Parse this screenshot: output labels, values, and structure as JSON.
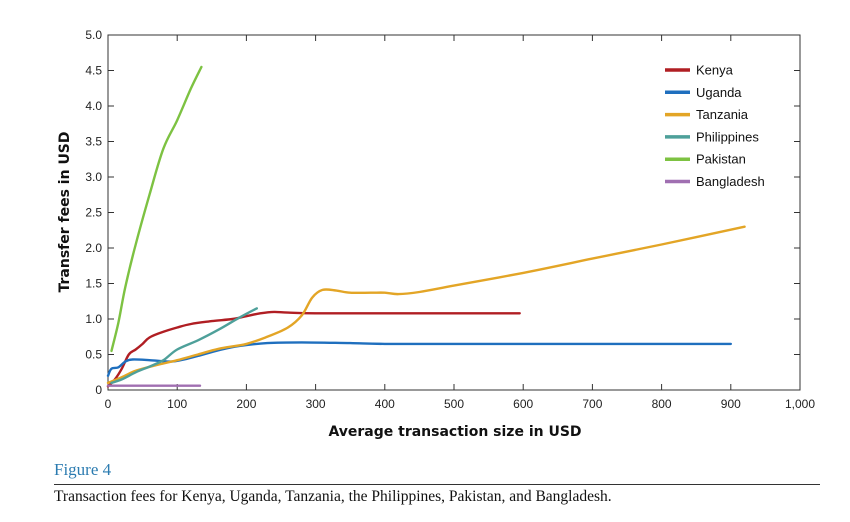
{
  "figure": {
    "label": "Figure 4",
    "caption": "Transaction fees for Kenya, Uganda, Tanzania, the Philippines, Pakistan, and Bangladesh."
  },
  "chart_data": {
    "type": "line",
    "title": "",
    "xlabel": "Average transaction size in USD",
    "ylabel": "Transfer fees in USD",
    "xlim": [
      0,
      1000
    ],
    "ylim": [
      0,
      5.0
    ],
    "x_ticks": [
      0,
      100,
      200,
      300,
      400,
      500,
      600,
      700,
      800,
      900,
      1000
    ],
    "x_tick_labels": [
      "0",
      "100",
      "200",
      "300",
      "400",
      "500",
      "600",
      "700",
      "800",
      "900",
      "1,000"
    ],
    "y_ticks": [
      0,
      0.5,
      1.0,
      1.5,
      2.0,
      2.5,
      3.0,
      3.5,
      4.0,
      4.5,
      5.0
    ],
    "y_tick_labels": [
      "0",
      "0.5",
      "1.0",
      "1.5",
      "2.0",
      "2.5",
      "3.0",
      "3.5",
      "4.0",
      "4.5",
      "5.0"
    ],
    "grid": false,
    "legend_position": "top-right",
    "series": [
      {
        "name": "Kenya",
        "color": "#b01e23",
        "points": [
          [
            0,
            0.05
          ],
          [
            10,
            0.15
          ],
          [
            20,
            0.3
          ],
          [
            30,
            0.5
          ],
          [
            40,
            0.57
          ],
          [
            50,
            0.65
          ],
          [
            60,
            0.74
          ],
          [
            80,
            0.82
          ],
          [
            100,
            0.88
          ],
          [
            120,
            0.93
          ],
          [
            150,
            0.97
          ],
          [
            180,
            1.0
          ],
          [
            200,
            1.04
          ],
          [
            220,
            1.08
          ],
          [
            240,
            1.1
          ],
          [
            260,
            1.09
          ],
          [
            300,
            1.08
          ],
          [
            400,
            1.08
          ],
          [
            500,
            1.08
          ],
          [
            595,
            1.08
          ]
        ]
      },
      {
        "name": "Uganda",
        "color": "#1f6fbe",
        "points": [
          [
            0,
            0.2
          ],
          [
            5,
            0.3
          ],
          [
            15,
            0.32
          ],
          [
            25,
            0.4
          ],
          [
            35,
            0.43
          ],
          [
            60,
            0.42
          ],
          [
            90,
            0.4
          ],
          [
            110,
            0.43
          ],
          [
            130,
            0.48
          ],
          [
            160,
            0.56
          ],
          [
            190,
            0.62
          ],
          [
            230,
            0.66
          ],
          [
            280,
            0.67
          ],
          [
            350,
            0.66
          ],
          [
            400,
            0.65
          ],
          [
            500,
            0.65
          ],
          [
            600,
            0.65
          ],
          [
            700,
            0.65
          ],
          [
            800,
            0.65
          ],
          [
            900,
            0.65
          ]
        ]
      },
      {
        "name": "Tanzania",
        "color": "#e3a526",
        "points": [
          [
            0,
            0.1
          ],
          [
            20,
            0.18
          ],
          [
            40,
            0.27
          ],
          [
            70,
            0.35
          ],
          [
            100,
            0.42
          ],
          [
            130,
            0.5
          ],
          [
            160,
            0.58
          ],
          [
            200,
            0.65
          ],
          [
            230,
            0.75
          ],
          [
            260,
            0.88
          ],
          [
            280,
            1.05
          ],
          [
            295,
            1.3
          ],
          [
            310,
            1.41
          ],
          [
            330,
            1.4
          ],
          [
            350,
            1.37
          ],
          [
            380,
            1.37
          ],
          [
            400,
            1.37
          ],
          [
            420,
            1.35
          ],
          [
            450,
            1.38
          ],
          [
            500,
            1.47
          ],
          [
            600,
            1.65
          ],
          [
            700,
            1.85
          ],
          [
            800,
            2.05
          ],
          [
            920,
            2.3
          ]
        ]
      },
      {
        "name": "Philippines",
        "color": "#4ea09a",
        "points": [
          [
            5,
            0.1
          ],
          [
            20,
            0.15
          ],
          [
            40,
            0.25
          ],
          [
            60,
            0.33
          ],
          [
            80,
            0.42
          ],
          [
            100,
            0.57
          ],
          [
            130,
            0.7
          ],
          [
            160,
            0.85
          ],
          [
            190,
            1.02
          ],
          [
            215,
            1.15
          ]
        ]
      },
      {
        "name": "Pakistan",
        "color": "#7dc242",
        "points": [
          [
            5,
            0.55
          ],
          [
            15,
            0.95
          ],
          [
            25,
            1.45
          ],
          [
            40,
            2.05
          ],
          [
            60,
            2.75
          ],
          [
            80,
            3.4
          ],
          [
            100,
            3.8
          ],
          [
            120,
            4.25
          ],
          [
            135,
            4.55
          ]
        ]
      },
      {
        "name": "Bangladesh",
        "color": "#a06fb1",
        "points": [
          [
            0,
            0.06
          ],
          [
            20,
            0.06
          ],
          [
            50,
            0.06
          ],
          [
            100,
            0.06
          ],
          [
            133,
            0.06
          ]
        ]
      }
    ]
  }
}
